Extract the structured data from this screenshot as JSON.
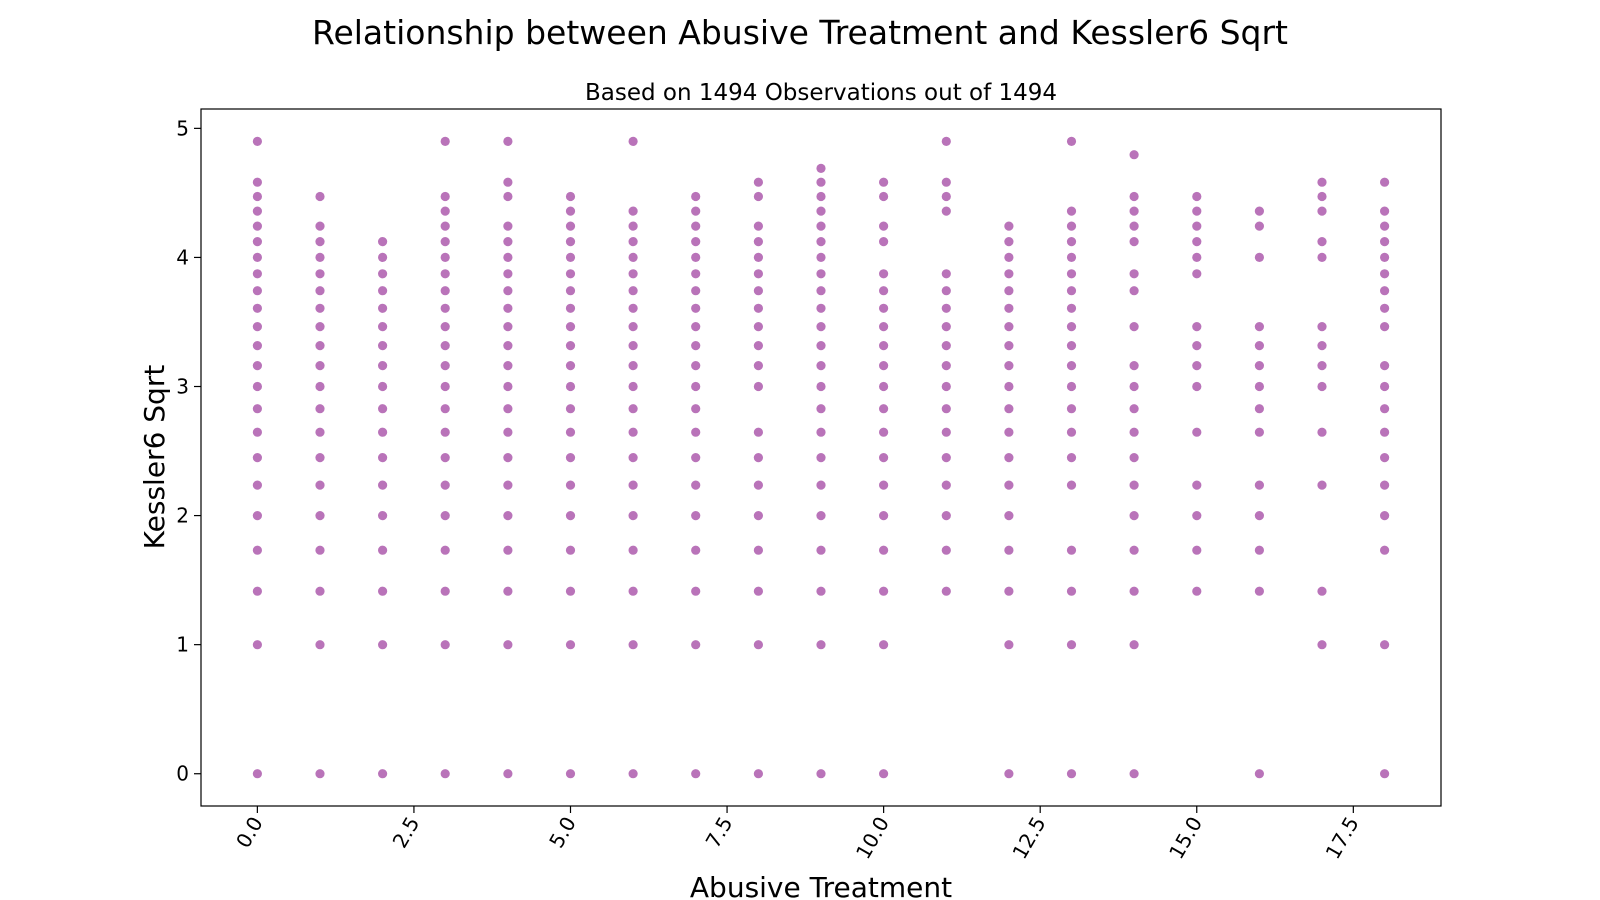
{
  "chart_data": {
    "type": "scatter",
    "title": "Relationship between Abusive Treatment and Kessler6 Sqrt",
    "subtitle": "Based on 1494 Observations out of 1494",
    "xlabel": "Abusive Treatment",
    "ylabel": "Kessler6 Sqrt",
    "xlim": [
      -0.9,
      18.9
    ],
    "ylim": [
      -0.25,
      5.15
    ],
    "xticks": [
      0.0,
      2.5,
      5.0,
      7.5,
      10.0,
      12.5,
      15.0,
      17.5
    ],
    "xtick_labels": [
      "0.0",
      "2.5",
      "5.0",
      "7.5",
      "10.0",
      "12.5",
      "15.0",
      "17.5"
    ],
    "yticks": [
      0,
      1,
      2,
      3,
      4,
      5
    ],
    "ytick_labels": [
      "0",
      "1",
      "2",
      "3",
      "4",
      "5"
    ],
    "grid": false,
    "legend": "none",
    "marker_color": "#800080",
    "points_by_x": [
      {
        "x": 0,
        "y": [
          0,
          1,
          1.414,
          1.732,
          2,
          2.236,
          2.449,
          2.646,
          2.828,
          3,
          3.162,
          3.317,
          3.464,
          3.606,
          3.742,
          3.873,
          4,
          4.123,
          4.243,
          4.359,
          4.472,
          4.583,
          4.899
        ]
      },
      {
        "x": 1,
        "y": [
          0,
          1,
          1.414,
          1.732,
          2,
          2.236,
          2.449,
          2.646,
          2.828,
          3,
          3.162,
          3.317,
          3.464,
          3.606,
          3.742,
          3.873,
          4,
          4.123,
          4.243,
          4.472
        ]
      },
      {
        "x": 2,
        "y": [
          0,
          1,
          1.414,
          1.732,
          2,
          2.236,
          2.449,
          2.646,
          2.828,
          3,
          3.162,
          3.317,
          3.464,
          3.606,
          3.742,
          3.873,
          4,
          4.123
        ]
      },
      {
        "x": 3,
        "y": [
          0,
          1,
          1.414,
          1.732,
          2,
          2.236,
          2.449,
          2.646,
          2.828,
          3,
          3.162,
          3.317,
          3.464,
          3.606,
          3.742,
          3.873,
          4,
          4.123,
          4.243,
          4.359,
          4.472,
          4.899
        ]
      },
      {
        "x": 4,
        "y": [
          0,
          1,
          1.414,
          1.732,
          2,
          2.236,
          2.449,
          2.646,
          2.828,
          3,
          3.162,
          3.317,
          3.464,
          3.606,
          3.742,
          3.873,
          4,
          4.123,
          4.243,
          4.472,
          4.583,
          4.899
        ]
      },
      {
        "x": 5,
        "y": [
          0,
          1,
          1.414,
          1.732,
          2,
          2.236,
          2.449,
          2.646,
          2.828,
          3,
          3.162,
          3.317,
          3.464,
          3.606,
          3.742,
          3.873,
          4,
          4.123,
          4.243,
          4.359,
          4.472
        ]
      },
      {
        "x": 6,
        "y": [
          0,
          1,
          1.414,
          1.732,
          2,
          2.236,
          2.449,
          2.646,
          2.828,
          3,
          3.162,
          3.317,
          3.464,
          3.606,
          3.742,
          3.873,
          4,
          4.123,
          4.243,
          4.359,
          4.899
        ]
      },
      {
        "x": 7,
        "y": [
          0,
          1,
          1.414,
          1.732,
          2,
          2.236,
          2.449,
          2.646,
          2.828,
          3,
          3.162,
          3.317,
          3.464,
          3.606,
          3.742,
          3.873,
          4,
          4.123,
          4.243,
          4.359,
          4.472
        ]
      },
      {
        "x": 8,
        "y": [
          0,
          1,
          1.414,
          1.732,
          2,
          2.236,
          2.449,
          2.646,
          3,
          3.162,
          3.317,
          3.464,
          3.606,
          3.742,
          3.873,
          4,
          4.123,
          4.243,
          4.472,
          4.583
        ]
      },
      {
        "x": 9,
        "y": [
          0,
          1,
          1.414,
          1.732,
          2,
          2.236,
          2.449,
          2.646,
          2.828,
          3,
          3.162,
          3.317,
          3.464,
          3.606,
          3.742,
          3.873,
          4,
          4.123,
          4.243,
          4.359,
          4.472,
          4.583,
          4.69
        ]
      },
      {
        "x": 10,
        "y": [
          0,
          1,
          1.414,
          1.732,
          2,
          2.236,
          2.449,
          2.646,
          2.828,
          3,
          3.162,
          3.317,
          3.464,
          3.606,
          3.742,
          3.873,
          4.123,
          4.243,
          4.472,
          4.583
        ]
      },
      {
        "x": 11,
        "y": [
          1.414,
          1.732,
          2,
          2.236,
          2.449,
          2.646,
          2.828,
          3,
          3.162,
          3.317,
          3.464,
          3.606,
          3.742,
          3.873,
          4.359,
          4.472,
          4.583,
          4.899
        ]
      },
      {
        "x": 12,
        "y": [
          0,
          1,
          1.414,
          1.732,
          2,
          2.236,
          2.449,
          2.646,
          2.828,
          3,
          3.162,
          3.317,
          3.464,
          3.606,
          3.742,
          3.873,
          4,
          4.123,
          4.243
        ]
      },
      {
        "x": 13,
        "y": [
          0,
          1,
          1.414,
          1.732,
          2.236,
          2.449,
          2.646,
          2.828,
          3,
          3.162,
          3.317,
          3.464,
          3.606,
          3.742,
          3.873,
          4,
          4.123,
          4.243,
          4.359,
          4.899
        ]
      },
      {
        "x": 14,
        "y": [
          0,
          1,
          1.414,
          1.732,
          2,
          2.236,
          2.449,
          2.646,
          2.828,
          3,
          3.162,
          3.464,
          3.742,
          3.873,
          4.123,
          4.243,
          4.359,
          4.472,
          4.796
        ]
      },
      {
        "x": 15,
        "y": [
          1.414,
          1.732,
          2,
          2.236,
          2.646,
          3,
          3.162,
          3.317,
          3.464,
          3.873,
          4,
          4.123,
          4.243,
          4.359,
          4.472
        ]
      },
      {
        "x": 16,
        "y": [
          0,
          1.414,
          1.732,
          2,
          2.236,
          2.646,
          2.828,
          3,
          3.162,
          3.317,
          3.464,
          4,
          4.243,
          4.359
        ]
      },
      {
        "x": 17,
        "y": [
          1,
          1.414,
          2.236,
          2.646,
          3,
          3.162,
          3.317,
          3.464,
          4,
          4.123,
          4.359,
          4.472,
          4.583
        ]
      },
      {
        "x": 18,
        "y": [
          0,
          1,
          1.732,
          2,
          2.236,
          2.449,
          2.646,
          2.828,
          3,
          3.162,
          3.464,
          3.606,
          3.742,
          3.873,
          4,
          4.123,
          4.243,
          4.359,
          4.583
        ]
      }
    ]
  }
}
